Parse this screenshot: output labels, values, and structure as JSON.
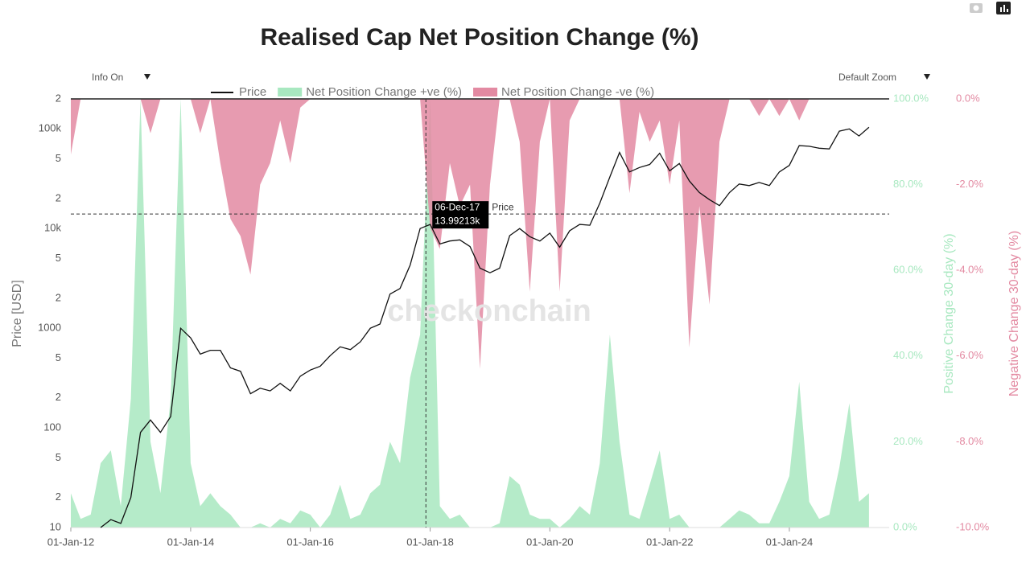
{
  "toolbar": {
    "info": "Info On",
    "zoom": "Default Zoom"
  },
  "watermark": "checkonchain",
  "chart_data": {
    "type": "line",
    "title": "Realised Cap Net Position Change (%)",
    "y_label": "Price [USD]",
    "y2_label": "Positive Change 30-day (%)",
    "y3_label": "Negative Change 30-day (%)",
    "log_y": true,
    "x": [
      "01-Jan-12",
      "01-Mar-12",
      "01-May-12",
      "01-Jul-12",
      "01-Sep-12",
      "01-Nov-12",
      "01-Jan-13",
      "01-Mar-13",
      "01-May-13",
      "01-Jul-13",
      "01-Sep-13",
      "01-Nov-13",
      "01-Jan-14",
      "01-Mar-14",
      "01-May-14",
      "01-Jul-14",
      "01-Sep-14",
      "01-Nov-14",
      "01-Jan-15",
      "01-Mar-15",
      "01-May-15",
      "01-Jul-15",
      "01-Sep-15",
      "01-Nov-15",
      "01-Jan-16",
      "01-Mar-16",
      "01-May-16",
      "01-Jul-16",
      "01-Sep-16",
      "01-Nov-16",
      "01-Jan-17",
      "01-Mar-17",
      "01-May-17",
      "01-Jul-17",
      "01-Sep-17",
      "01-Nov-17",
      "01-Jan-18",
      "01-Mar-18",
      "01-May-18",
      "01-Jul-18",
      "01-Sep-18",
      "01-Nov-18",
      "01-Jan-19",
      "01-Mar-19",
      "01-May-19",
      "01-Jul-19",
      "01-Sep-19",
      "01-Nov-19",
      "01-Jan-20",
      "01-Mar-20",
      "01-May-20",
      "01-Jul-20",
      "01-Sep-20",
      "01-Nov-20",
      "01-Jan-21",
      "01-Mar-21",
      "01-May-21",
      "01-Jul-21",
      "01-Sep-21",
      "01-Nov-21",
      "01-Jan-22",
      "01-Mar-22",
      "01-May-22",
      "01-Jul-22",
      "01-Sep-22",
      "01-Nov-22",
      "01-Jan-23",
      "01-Mar-23",
      "01-May-23",
      "01-Jul-23",
      "01-Sep-23",
      "01-Nov-23",
      "01-Jan-24",
      "01-Mar-24",
      "01-May-24",
      "01-Jul-24",
      "01-Sep-24",
      "01-Nov-24",
      "01-Jan-25",
      "01-Mar-25",
      "01-May-25"
    ],
    "xlim": [
      "01-Jan-12",
      "01-Sep-25"
    ],
    "xticks": [
      "01-Jan-12",
      "01-Jan-14",
      "01-Jan-16",
      "01-Jan-18",
      "01-Jan-20",
      "01-Jan-22",
      "01-Jan-24"
    ],
    "ylim": [
      10,
      200000
    ],
    "yticks": [
      10,
      {
        "value": 20,
        "label": "2"
      },
      {
        "value": 50,
        "label": "5"
      },
      100,
      {
        "value": 200,
        "label": "2"
      },
      {
        "value": 500,
        "label": "5"
      },
      1000,
      {
        "value": 2000,
        "label": "2"
      },
      {
        "value": 5000,
        "label": "5"
      },
      {
        "value": 10000,
        "label": "10k"
      },
      {
        "value": 20000,
        "label": "2"
      },
      {
        "value": 50000,
        "label": "5"
      },
      {
        "value": 100000,
        "label": "100k"
      },
      {
        "value": 200000,
        "label": "2"
      }
    ],
    "y2lim": [
      0,
      100
    ],
    "y2ticks": [
      {
        "value": 0,
        "label": "0.0%"
      },
      {
        "value": 20,
        "label": "20.0%"
      },
      {
        "value": 40,
        "label": "40.0%"
      },
      {
        "value": 60,
        "label": "60.0%"
      },
      {
        "value": 80,
        "label": "80.0%"
      },
      {
        "value": 100,
        "label": "100.0%"
      }
    ],
    "y3lim": [
      -10,
      0
    ],
    "y3ticks": [
      {
        "value": 0,
        "label": "0.0%"
      },
      {
        "value": -2,
        "label": "-2.0%"
      },
      {
        "value": -4,
        "label": "-4.0%"
      },
      {
        "value": -6,
        "label": "-6.0%"
      },
      {
        "value": -8,
        "label": "-8.0%"
      },
      {
        "value": -10,
        "label": "-10.0%"
      }
    ],
    "series": [
      {
        "name": "Price",
        "color": "#111111",
        "axis": "y",
        "values": [
          null,
          null,
          null,
          10,
          12,
          11,
          20,
          90,
          120,
          90,
          130,
          1000,
          800,
          550,
          600,
          600,
          400,
          370,
          220,
          250,
          235,
          280,
          235,
          330,
          380,
          415,
          530,
          650,
          610,
          730,
          1000,
          1100,
          2200,
          2500,
          4300,
          10000,
          11000,
          7000,
          7500,
          7700,
          6600,
          4000,
          3600,
          4000,
          8500,
          10000,
          8300,
          7500,
          9000,
          6500,
          9500,
          11000,
          10800,
          18000,
          33000,
          58000,
          37000,
          41000,
          44000,
          57000,
          38000,
          45000,
          30000,
          23000,
          19500,
          17000,
          23000,
          28000,
          27000,
          29000,
          27000,
          37000,
          43000,
          68000,
          67000,
          64000,
          63000,
          95000,
          100000,
          85000,
          104000
        ]
      },
      {
        "name": "Net Position Change +ve (%)",
        "color": "#a8e8c0",
        "axis": "y2",
        "values": [
          8,
          2,
          3,
          15,
          18,
          5,
          30,
          100,
          20,
          8,
          30,
          100,
          15,
          5,
          8,
          5,
          3,
          0,
          0,
          1,
          0,
          2,
          1,
          4,
          3,
          0,
          3,
          10,
          2,
          3,
          8,
          10,
          20,
          15,
          35,
          45,
          100,
          5,
          2,
          3,
          0,
          0,
          0,
          1,
          12,
          10,
          3,
          2,
          2,
          0,
          2,
          5,
          3,
          15,
          45,
          20,
          3,
          2,
          10,
          18,
          2,
          3,
          0,
          0,
          0,
          0,
          2,
          4,
          3,
          1,
          1,
          6,
          12,
          34,
          6,
          2,
          3,
          14,
          29,
          6,
          8
        ]
      },
      {
        "name": "Net Position Change -ve (%)",
        "color": "#e38aa2",
        "axis": "y3",
        "values": [
          -1.3,
          0,
          0,
          0,
          0,
          0,
          0,
          0,
          -0.8,
          0,
          0,
          0,
          0,
          -0.8,
          0,
          -1.5,
          -2.8,
          -3.2,
          -4.1,
          -2,
          -1.5,
          -0.5,
          -1.5,
          -0.2,
          0,
          0,
          0,
          0,
          0,
          0,
          0,
          0,
          0,
          0,
          0,
          0,
          -3,
          -3.5,
          -1.5,
          -2.5,
          -2,
          -6.3,
          -2,
          0,
          0,
          -1,
          -4.5,
          -1,
          0,
          -4.5,
          -0.5,
          0,
          0,
          0,
          0,
          0,
          -2.2,
          -0.3,
          -1,
          -0.5,
          -2,
          -0.5,
          -5.8,
          -2.5,
          -4.8,
          -1,
          0,
          0,
          0,
          -0.4,
          0,
          -0.4,
          0,
          -0.5,
          0,
          0,
          0,
          0,
          0,
          0,
          0
        ]
      }
    ],
    "tooltip": {
      "date": "06-Dec-17",
      "value": 13992.13,
      "value_label": "13.99213k",
      "series": "Price"
    }
  }
}
